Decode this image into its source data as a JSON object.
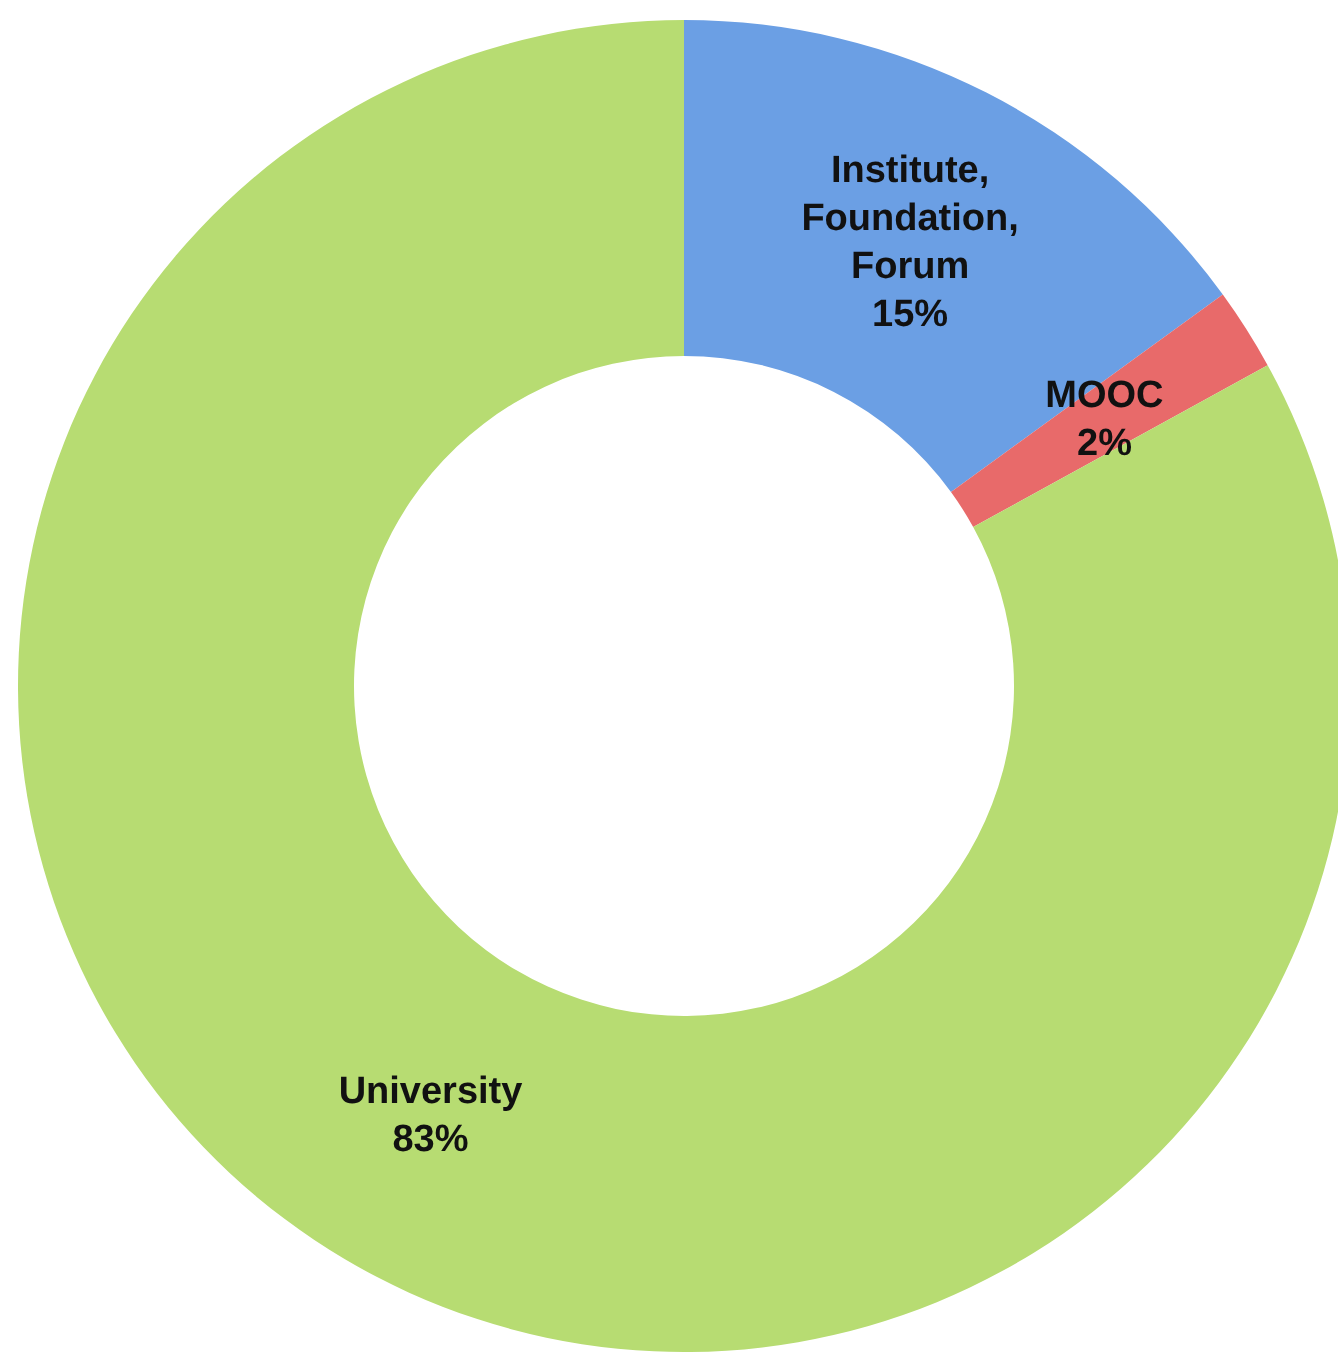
{
  "chart_data": {
    "type": "donut",
    "categories": [
      "Institute, Foundation, Forum",
      "MOOC",
      "University"
    ],
    "values": [
      15,
      2,
      83
    ],
    "colors": [
      "#6b9fe4",
      "#e86a6a",
      "#b7dc72"
    ],
    "value_labels": [
      "15%",
      "2%",
      "83%"
    ]
  }
}
